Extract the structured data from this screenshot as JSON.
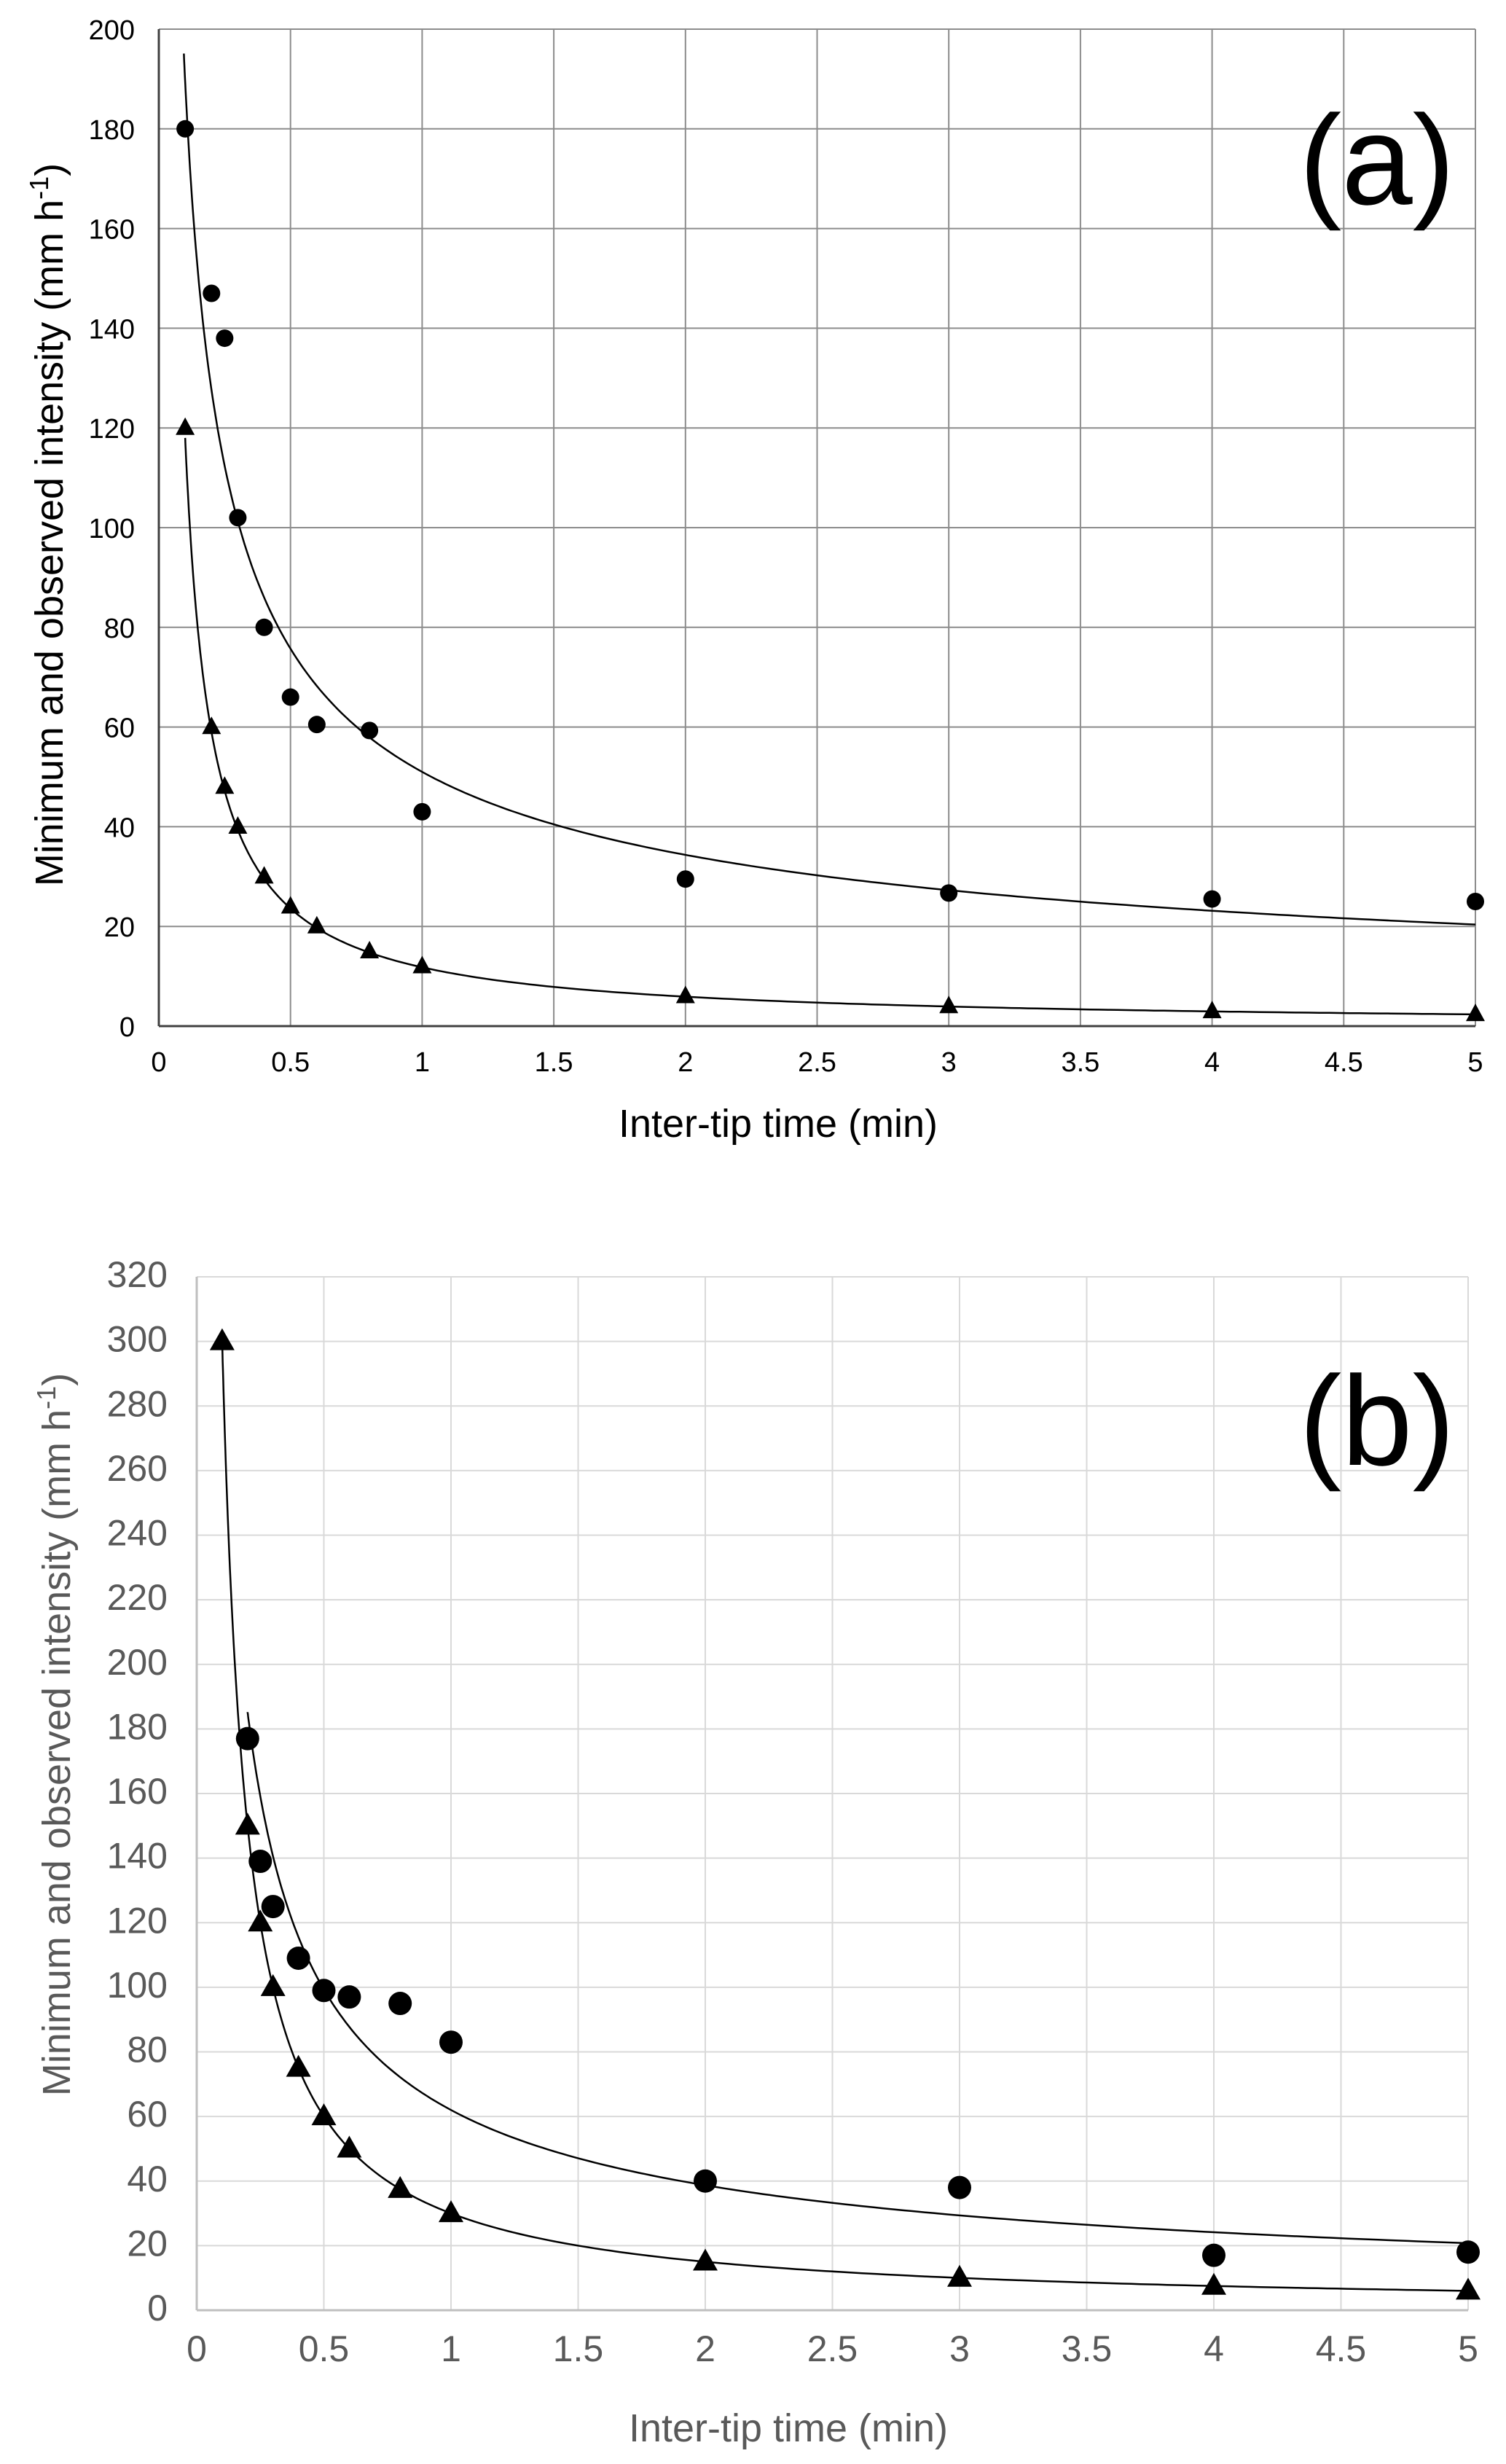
{
  "chart_data": [
    {
      "type": "scatter",
      "panel_label": "(a)",
      "xlabel": "Inter-tip time (min)",
      "ylabel": "Minimum and observed intensity (mm h",
      "ylabel_sup": "-1",
      "ylabel_close": ")",
      "xlim": [
        0,
        5
      ],
      "ylim": [
        0,
        200
      ],
      "x_ticks": [
        "0",
        "0.5",
        "1",
        "1.5",
        "2",
        "2.5",
        "3",
        "3.5",
        "4",
        "4.5",
        "5"
      ],
      "y_ticks": [
        "0",
        "20",
        "40",
        "60",
        "80",
        "100",
        "120",
        "140",
        "160",
        "180",
        "200"
      ],
      "grid": true,
      "colors": {
        "markers": "#000000",
        "grid": "#8c8c8c",
        "text": "#000000"
      },
      "series": [
        {
          "marker": "circle",
          "x": [
            0.1,
            0.2,
            0.25,
            0.3,
            0.4,
            0.5,
            0.6,
            0.8,
            1,
            2,
            3,
            4,
            5
          ],
          "y": [
            180,
            147,
            138,
            102,
            80,
            66,
            60.5,
            59.3,
            43,
            29.5,
            26.7,
            25.5,
            25
          ],
          "fit": {
            "kind": "power",
            "coef": 51,
            "exp": -0.57,
            "x_range": [
              0.095,
              5
            ]
          }
        },
        {
          "marker": "triangle",
          "x": [
            0.1,
            0.2,
            0.25,
            0.3,
            0.4,
            0.5,
            0.6,
            0.8,
            1,
            2,
            3,
            4,
            5
          ],
          "y": [
            120,
            60,
            48,
            40,
            30,
            24,
            20,
            15,
            12,
            6,
            4,
            3,
            2.4
          ],
          "fit": {
            "kind": "power",
            "coef": 11.8,
            "exp": -1.0,
            "x_range": [
              0.1,
              5
            ]
          }
        }
      ]
    },
    {
      "type": "scatter",
      "panel_label": "(b)",
      "xlabel": "Inter-tip time (min)",
      "ylabel": "Minimum and observed intensity (mm h",
      "ylabel_sup": "-1",
      "ylabel_close": ")",
      "xlim": [
        0,
        5
      ],
      "ylim": [
        0,
        320
      ],
      "x_ticks": [
        "0",
        "0.5",
        "1",
        "1.5",
        "2",
        "2.5",
        "3",
        "3.5",
        "4",
        "4.5",
        "5"
      ],
      "y_ticks": [
        "0",
        "20",
        "40",
        "60",
        "80",
        "100",
        "120",
        "140",
        "160",
        "180",
        "200",
        "220",
        "240",
        "260",
        "280",
        "300",
        "320"
      ],
      "grid": true,
      "colors": {
        "markers": "#000000",
        "grid": "#d9d9d9",
        "text": "#595959"
      },
      "series": [
        {
          "marker": "circle",
          "x": [
            0.2,
            0.25,
            0.3,
            0.4,
            0.5,
            0.6,
            0.8,
            1,
            2,
            3,
            4,
            5
          ],
          "y": [
            177,
            139,
            125,
            109,
            99,
            97,
            95,
            83,
            40,
            38,
            17,
            18
          ],
          "fit": {
            "kind": "power",
            "coef": 62,
            "exp": -0.68,
            "x_range": [
              0.2,
              5
            ]
          }
        },
        {
          "marker": "triangle",
          "x": [
            0.1,
            0.2,
            0.25,
            0.3,
            0.4,
            0.5,
            0.6,
            0.8,
            1,
            2,
            3,
            4,
            5
          ],
          "y": [
            300,
            150,
            120,
            100,
            75,
            60,
            50,
            37.5,
            30,
            15,
            10,
            7.5,
            6
          ],
          "fit": {
            "kind": "power",
            "coef": 30,
            "exp": -1.0,
            "x_range": [
              0.1,
              5
            ]
          }
        }
      ]
    }
  ]
}
